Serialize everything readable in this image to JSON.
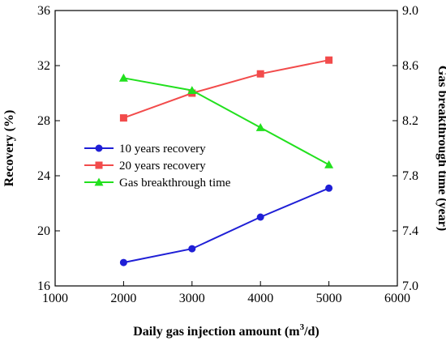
{
  "chart_data": {
    "type": "line",
    "x_axis": {
      "label_main": "Daily gas injection amount (m",
      "label_sup": "3",
      "label_tail": "/d)",
      "range": [
        1000,
        6000
      ],
      "ticks": [
        1000,
        2000,
        3000,
        4000,
        5000,
        6000
      ],
      "tick_labels": [
        "1000",
        "2000",
        "3000",
        "4000",
        "5000",
        "6000"
      ]
    },
    "y_left": {
      "label": "Recovery (%)",
      "range": [
        16,
        36
      ],
      "ticks": [
        16,
        20,
        24,
        28,
        32,
        36
      ],
      "tick_labels": [
        "16",
        "20",
        "24",
        "28",
        "32",
        "36"
      ]
    },
    "y_right": {
      "label": "Gas breakthrough time (year)",
      "range": [
        7.0,
        9.0
      ],
      "ticks": [
        7.0,
        7.4,
        7.8,
        8.2,
        8.6,
        9.0
      ],
      "tick_labels": [
        "7.0",
        "7.4",
        "7.8",
        "8.2",
        "8.6",
        "9.0"
      ]
    },
    "x": [
      2000,
      3000,
      4000,
      5000
    ],
    "series": [
      {
        "name": "10 years recovery",
        "axis": "left",
        "marker": "circle",
        "color": "#1f1fd6",
        "values": [
          17.7,
          18.7,
          21.0,
          23.1
        ]
      },
      {
        "name": "20 years recovery",
        "axis": "left",
        "marker": "square",
        "color": "#f24b4b",
        "values": [
          28.2,
          30.0,
          31.4,
          32.4
        ]
      },
      {
        "name": "Gas breakthrough time",
        "axis": "right",
        "marker": "triangle",
        "color": "#22e01e",
        "values": [
          8.51,
          8.42,
          8.15,
          7.88
        ]
      }
    ],
    "legend_position": "center-left",
    "grid": false
  }
}
